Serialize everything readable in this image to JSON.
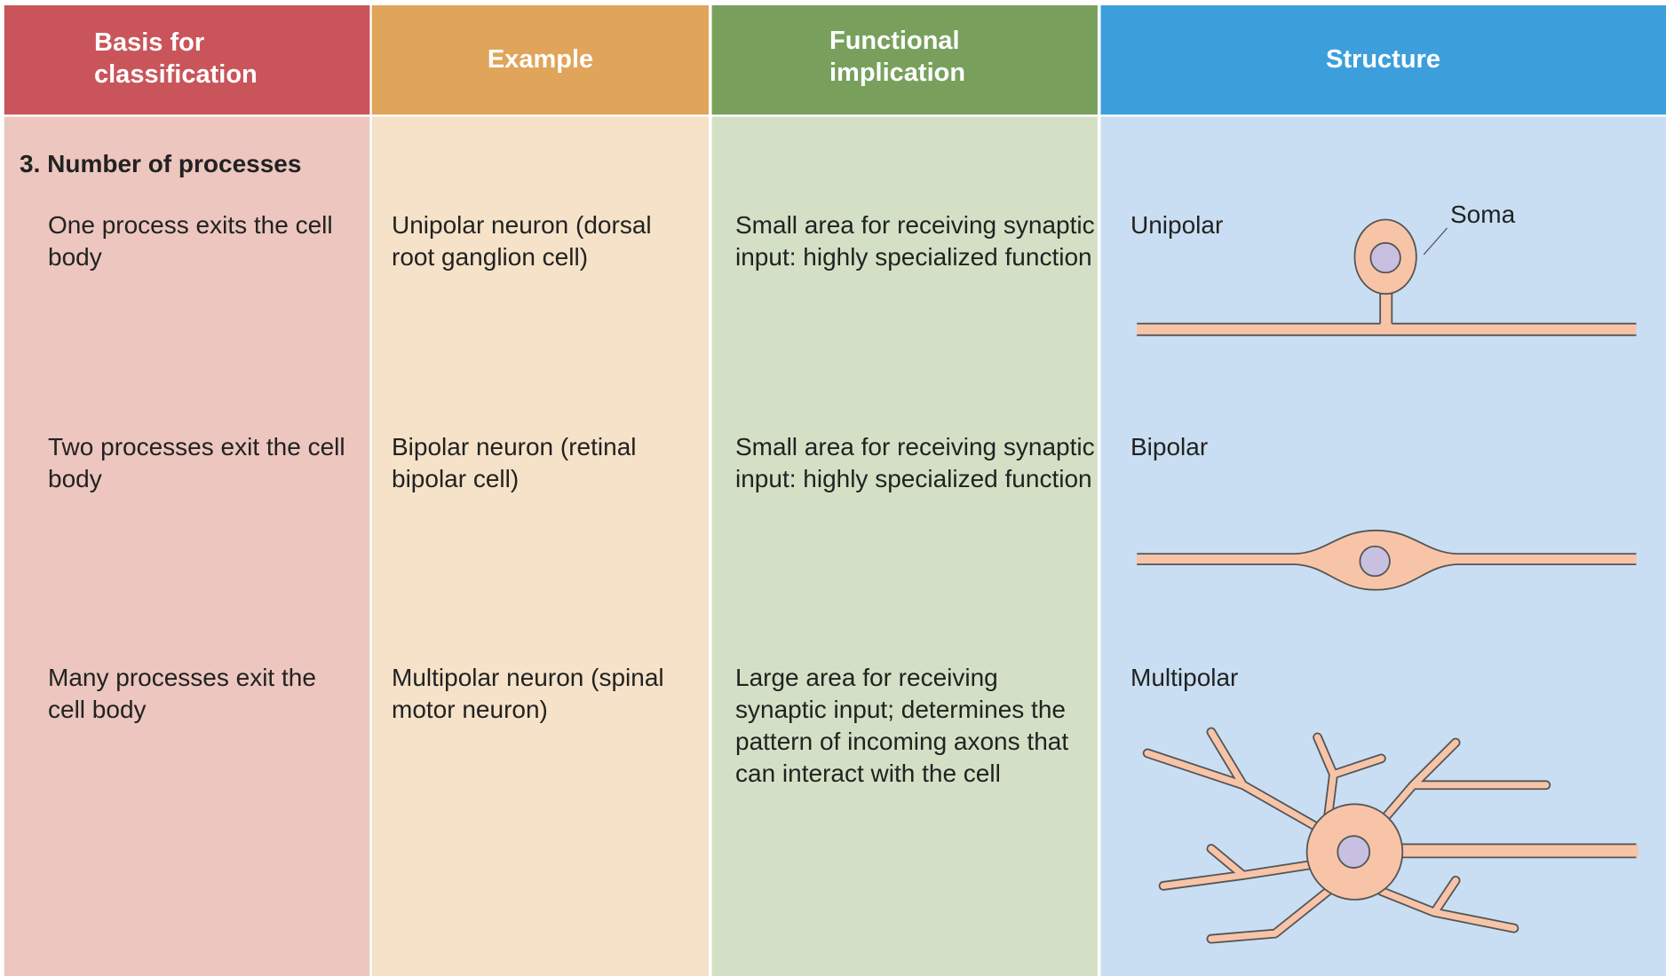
{
  "table": {
    "headers": [
      "Basis for classification",
      "Example",
      "Functional implication",
      "Structure"
    ],
    "section": "3. Number of processes",
    "rows": [
      [
        "One process exits the cell body",
        "Unipolar neuron (dorsal root ganglion cell)",
        "Small area for receiving synaptic input: highly specialized function",
        "Unipolar"
      ],
      [
        "Two processes exit the cell body",
        "Bipolar neuron (retinal bipolar cell)",
        "Small area for receiving synaptic input: highly specialized function",
        "Bipolar"
      ],
      [
        "Many processes exit the cell body",
        "Multipolar neuron (spinal motor neuron)",
        "Large area for receiving synaptic input; determines the pattern of incoming axons that can interact with the cell",
        "Multipolar"
      ]
    ],
    "soma_label": "Soma"
  }
}
